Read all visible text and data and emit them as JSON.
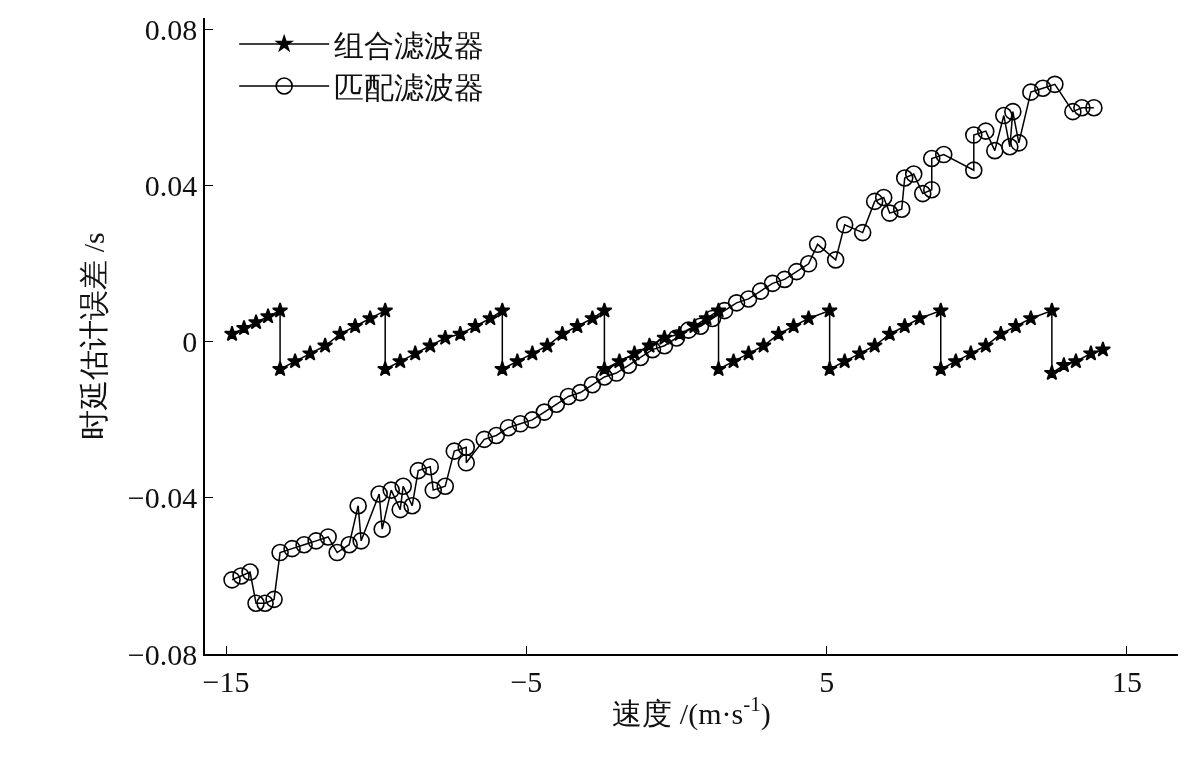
{
  "chart_data": {
    "type": "line",
    "xlabel": "速度 /(m·s$^{-1}$)",
    "ylabel": "时延估计误差 /s",
    "xlim": [
      -15.7,
      16.7
    ],
    "xticks": [
      -15,
      -5,
      5,
      15
    ],
    "ylim": [
      -0.08,
      0.083
    ],
    "yticks": [
      -0.08,
      -0.04,
      0,
      0.04,
      0.08
    ],
    "grid": false,
    "legend": "top left",
    "line_style": "solid",
    "series": [
      {
        "name": "组合滤波器",
        "color": "#000000",
        "marker": "star",
        "x": [
          -14.8,
          -14.4,
          -14.0,
          -13.6,
          -13.2,
          -13.2,
          -12.7,
          -12.2,
          -11.7,
          -11.2,
          -10.7,
          -10.2,
          -9.7,
          -9.7,
          -9.2,
          -8.7,
          -8.2,
          -7.7,
          -7.2,
          -6.7,
          -6.2,
          -5.8,
          -5.8,
          -5.3,
          -4.8,
          -4.3,
          -3.8,
          -3.3,
          -2.8,
          -2.4,
          -2.4,
          -1.9,
          -1.4,
          -0.9,
          -0.4,
          0.1,
          0.6,
          1.0,
          1.4,
          1.4,
          1.9,
          2.4,
          2.9,
          3.4,
          3.9,
          4.4,
          5.1,
          5.1,
          5.6,
          6.1,
          6.6,
          7.1,
          7.6,
          8.1,
          8.8,
          8.8,
          9.3,
          9.8,
          10.3,
          10.8,
          11.3,
          11.8,
          12.5,
          12.5,
          12.9,
          13.3,
          13.8,
          14.2
        ],
        "values": [
          0.002,
          0.0035,
          0.005,
          0.0065,
          0.008,
          -0.007,
          -0.005,
          -0.003,
          -0.001,
          0.002,
          0.004,
          0.006,
          0.008,
          -0.007,
          -0.005,
          -0.003,
          -0.001,
          0.001,
          0.002,
          0.004,
          0.006,
          0.008,
          -0.007,
          -0.005,
          -0.003,
          -0.001,
          0.002,
          0.004,
          0.006,
          0.008,
          -0.007,
          -0.005,
          -0.003,
          -0.001,
          0.001,
          0.002,
          0.004,
          0.006,
          0.008,
          -0.007,
          -0.005,
          -0.003,
          -0.001,
          0.002,
          0.004,
          0.006,
          0.008,
          -0.007,
          -0.005,
          -0.003,
          -0.001,
          0.002,
          0.004,
          0.006,
          0.008,
          -0.007,
          -0.005,
          -0.003,
          -0.001,
          0.002,
          0.004,
          0.006,
          0.008,
          -0.008,
          -0.006,
          -0.005,
          -0.003,
          -0.002
        ]
      },
      {
        "name": "匹配滤波器",
        "color": "#000000",
        "marker": "circle",
        "x": [
          -14.8,
          -14.5,
          -14.2,
          -14.0,
          -13.7,
          -13.4,
          -13.2,
          -12.8,
          -12.4,
          -12.0,
          -11.6,
          -11.3,
          -10.9,
          -10.6,
          -10.5,
          -9.9,
          -9.8,
          -9.5,
          -9.2,
          -9.1,
          -8.8,
          -8.6,
          -8.2,
          -8.1,
          -7.7,
          -7.4,
          -7.0,
          -7.0,
          -6.4,
          -6.0,
          -5.6,
          -5.2,
          -4.8,
          -4.4,
          -4.0,
          -3.6,
          -3.2,
          -2.8,
          -2.4,
          -2.0,
          -1.6,
          -1.2,
          -0.8,
          -0.4,
          0.0,
          0.4,
          0.8,
          1.2,
          1.6,
          2.0,
          2.4,
          2.8,
          3.2,
          3.6,
          4.0,
          4.4,
          4.7,
          5.3,
          5.6,
          6.2,
          6.6,
          6.9,
          7.1,
          7.5,
          7.6,
          7.9,
          8.2,
          8.5,
          8.5,
          8.9,
          9.9,
          9.9,
          10.3,
          10.6,
          10.9,
          11.1,
          11.2,
          11.4,
          11.8,
          12.2,
          12.6,
          13.2,
          13.5,
          13.9
        ],
        "values": [
          -0.061,
          -0.06,
          -0.059,
          -0.067,
          -0.067,
          -0.066,
          -0.054,
          -0.053,
          -0.052,
          -0.051,
          -0.05,
          -0.054,
          -0.052,
          -0.042,
          -0.051,
          -0.039,
          -0.048,
          -0.038,
          -0.043,
          -0.037,
          -0.042,
          -0.033,
          -0.032,
          -0.038,
          -0.037,
          -0.028,
          -0.027,
          -0.031,
          -0.025,
          -0.024,
          -0.022,
          -0.021,
          -0.02,
          -0.018,
          -0.016,
          -0.014,
          -0.013,
          -0.011,
          -0.009,
          -0.008,
          -0.006,
          -0.004,
          -0.002,
          -0.001,
          0.001,
          0.003,
          0.004,
          0.006,
          0.008,
          0.01,
          0.011,
          0.013,
          0.015,
          0.016,
          0.018,
          0.02,
          0.025,
          0.021,
          0.03,
          0.028,
          0.036,
          0.037,
          0.033,
          0.034,
          0.042,
          0.043,
          0.038,
          0.039,
          0.047,
          0.048,
          0.044,
          0.053,
          0.054,
          0.049,
          0.058,
          0.05,
          0.059,
          0.051,
          0.064,
          0.065,
          0.066,
          0.059,
          0.06,
          0.06
        ]
      }
    ]
  }
}
